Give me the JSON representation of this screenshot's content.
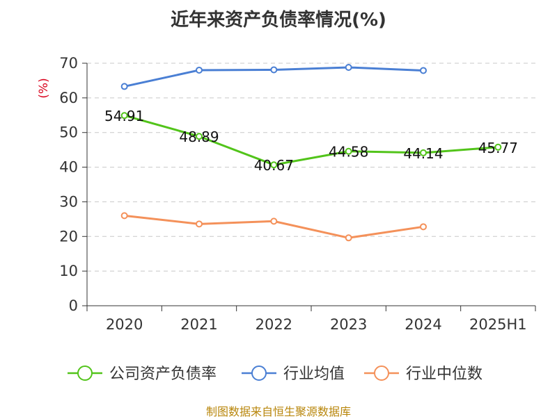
{
  "chart_data": {
    "type": "line",
    "title": "近年来资产负债率情况(%)",
    "ylabel": "(%)",
    "categories": [
      "2020",
      "2021",
      "2022",
      "2023",
      "2024",
      "2025H1"
    ],
    "ylim": [
      0,
      70
    ],
    "yticks": [
      0,
      10,
      20,
      30,
      40,
      50,
      60,
      70
    ],
    "grid": true,
    "legend_position": "bottom",
    "series": [
      {
        "name": "公司资产负债率",
        "color": "#52c41a",
        "values": [
          54.91,
          48.89,
          40.67,
          44.58,
          44.14,
          45.77
        ],
        "labels": [
          "54.91",
          "48.89",
          "40.67",
          "44.58",
          "44.14",
          "45.77"
        ]
      },
      {
        "name": "行业均值",
        "color": "#4a7fd4",
        "values": [
          63.3,
          68.0,
          68.1,
          68.8,
          67.9,
          null
        ]
      },
      {
        "name": "行业中位数",
        "color": "#f4915a",
        "values": [
          26.0,
          23.6,
          24.4,
          19.6,
          22.8,
          null
        ]
      }
    ]
  },
  "source": "制图数据来自恒生聚源数据库"
}
